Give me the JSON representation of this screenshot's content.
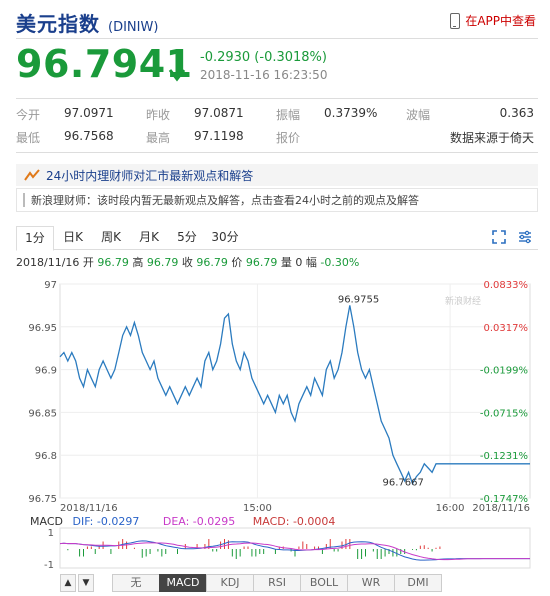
{
  "header": {
    "name": "美元指数",
    "code": "(DINIW)",
    "app_link": "在APP中查看"
  },
  "quote": {
    "price": "96.7941",
    "change": "-0.2930 (-0.3018%)",
    "timestamp": "2018-11-16 16:23:50"
  },
  "stats": {
    "rows": [
      [
        {
          "label": "今开",
          "value": "97.0971"
        },
        {
          "label": "昨收",
          "value": "97.0871"
        },
        {
          "label": "振幅",
          "value": "0.3739%"
        },
        {
          "label": "波幅",
          "value": "0.363"
        }
      ],
      [
        {
          "label": "最低",
          "value": "96.7568"
        },
        {
          "label": "最高",
          "value": "97.1198"
        },
        {
          "label": "报价",
          "value": ""
        },
        {
          "label": "",
          "value": "数据来源于倚天"
        }
      ]
    ]
  },
  "news": {
    "title": "24小时内理财师对汇市最新观点和解答",
    "body": "新浪理财师：该时段内暂无最新观点及解答，点击查看24小时之前的观点及解答"
  },
  "tabs": [
    "1分",
    "日K",
    "周K",
    "月K",
    "5分",
    "30分"
  ],
  "summary": {
    "date": "2018/11/16",
    "open_lbl": "开",
    "open": "96.79",
    "high_lbl": "高",
    "high": "96.79",
    "close_lbl": "收",
    "close": "96.79",
    "last_lbl": "价",
    "last": "96.79",
    "vol_lbl": "量",
    "vol": "0",
    "amp_lbl": "幅",
    "amp": "-0.30%"
  },
  "chart_data": {
    "type": "line",
    "yticks": [
      "97",
      "96.95",
      "96.9",
      "96.85",
      "96.8",
      "96.75"
    ],
    "ylim": [
      96.75,
      97.0
    ],
    "right_ticks": [
      "0.0833%",
      "0.0317%",
      "-0.0199%",
      "-0.0715%",
      "-0.1231%",
      "-0.1747%"
    ],
    "xticks": [
      "2018/11/16",
      "15:00",
      "16:00",
      "2018/11/16"
    ],
    "max_label": "96.9755",
    "min_label": "96.7667",
    "watermark": "新浪财经",
    "x": [
      0,
      2,
      4,
      6,
      8,
      10,
      12,
      14,
      16,
      18,
      20,
      22,
      24,
      26,
      28,
      30,
      32,
      34,
      36,
      38,
      40,
      42,
      44,
      46,
      48,
      50,
      52,
      54,
      56,
      58,
      60,
      62,
      64,
      66,
      68,
      70,
      72,
      74,
      76,
      78,
      80,
      82,
      84,
      86,
      88,
      90,
      92,
      94,
      96,
      98,
      100,
      102,
      104,
      106,
      108,
      110,
      112,
      114,
      116,
      118,
      120,
      122,
      124,
      126,
      128,
      130,
      132,
      134,
      136,
      138,
      140,
      142,
      144,
      146,
      148,
      150,
      152,
      154,
      156,
      158,
      160,
      162,
      164,
      166,
      168,
      170,
      172,
      174,
      176,
      178,
      180,
      182,
      184,
      186,
      188,
      190,
      192,
      194,
      196,
      198,
      200,
      202,
      204,
      206,
      208,
      210,
      212,
      214,
      216,
      218,
      220,
      222,
      224,
      226,
      228,
      230,
      232,
      234,
      236,
      238,
      240
    ],
    "y": [
      96.915,
      96.92,
      96.91,
      96.92,
      96.91,
      96.89,
      96.88,
      96.9,
      96.89,
      96.88,
      96.9,
      96.91,
      96.9,
      96.89,
      96.9,
      96.92,
      96.94,
      96.95,
      96.94,
      96.955,
      96.94,
      96.92,
      96.91,
      96.9,
      96.91,
      96.89,
      96.88,
      96.87,
      96.88,
      96.87,
      96.86,
      96.87,
      96.88,
      96.87,
      96.88,
      96.89,
      96.88,
      96.91,
      96.92,
      96.9,
      96.91,
      96.93,
      96.96,
      96.965,
      96.93,
      96.91,
      96.9,
      96.92,
      96.91,
      96.89,
      96.88,
      96.87,
      96.86,
      96.87,
      96.86,
      96.85,
      96.87,
      96.86,
      96.87,
      96.85,
      96.84,
      96.86,
      96.87,
      96.88,
      96.87,
      96.89,
      96.88,
      96.87,
      96.9,
      96.91,
      96.89,
      96.9,
      96.92,
      96.95,
      96.975,
      96.95,
      96.92,
      96.9,
      96.89,
      96.9,
      96.88,
      96.86,
      96.84,
      96.83,
      96.82,
      96.8,
      96.79,
      96.78,
      96.77,
      96.78,
      96.7667,
      96.775,
      96.78,
      96.79,
      96.785,
      96.78,
      96.79,
      96.79,
      96.79,
      96.79,
      96.79,
      96.79,
      96.79,
      96.79,
      96.79,
      96.79,
      96.79,
      96.79,
      96.79,
      96.79,
      96.79,
      96.79,
      96.79,
      96.79,
      96.79,
      96.79,
      96.79,
      96.79,
      96.79,
      96.79,
      96.79
    ],
    "macd": {
      "dif": "-0.0297",
      "dea": "-0.0295",
      "macd": "-0.0004",
      "yticks": [
        "1",
        "-1"
      ]
    }
  },
  "macd_labels": {
    "title": "MACD",
    "dif": "DIF: -0.0297",
    "dea": "DEA: -0.0295",
    "macd": "MACD: -0.0004"
  },
  "bottom_tabs": [
    "无",
    "MACD",
    "KDJ",
    "RSI",
    "BOLL",
    "WR",
    "DMI"
  ],
  "colors": {
    "up": "#e03a3a",
    "down": "#1a9a3a",
    "line": "#2b7bbf",
    "brand": "#1a3f8c"
  }
}
